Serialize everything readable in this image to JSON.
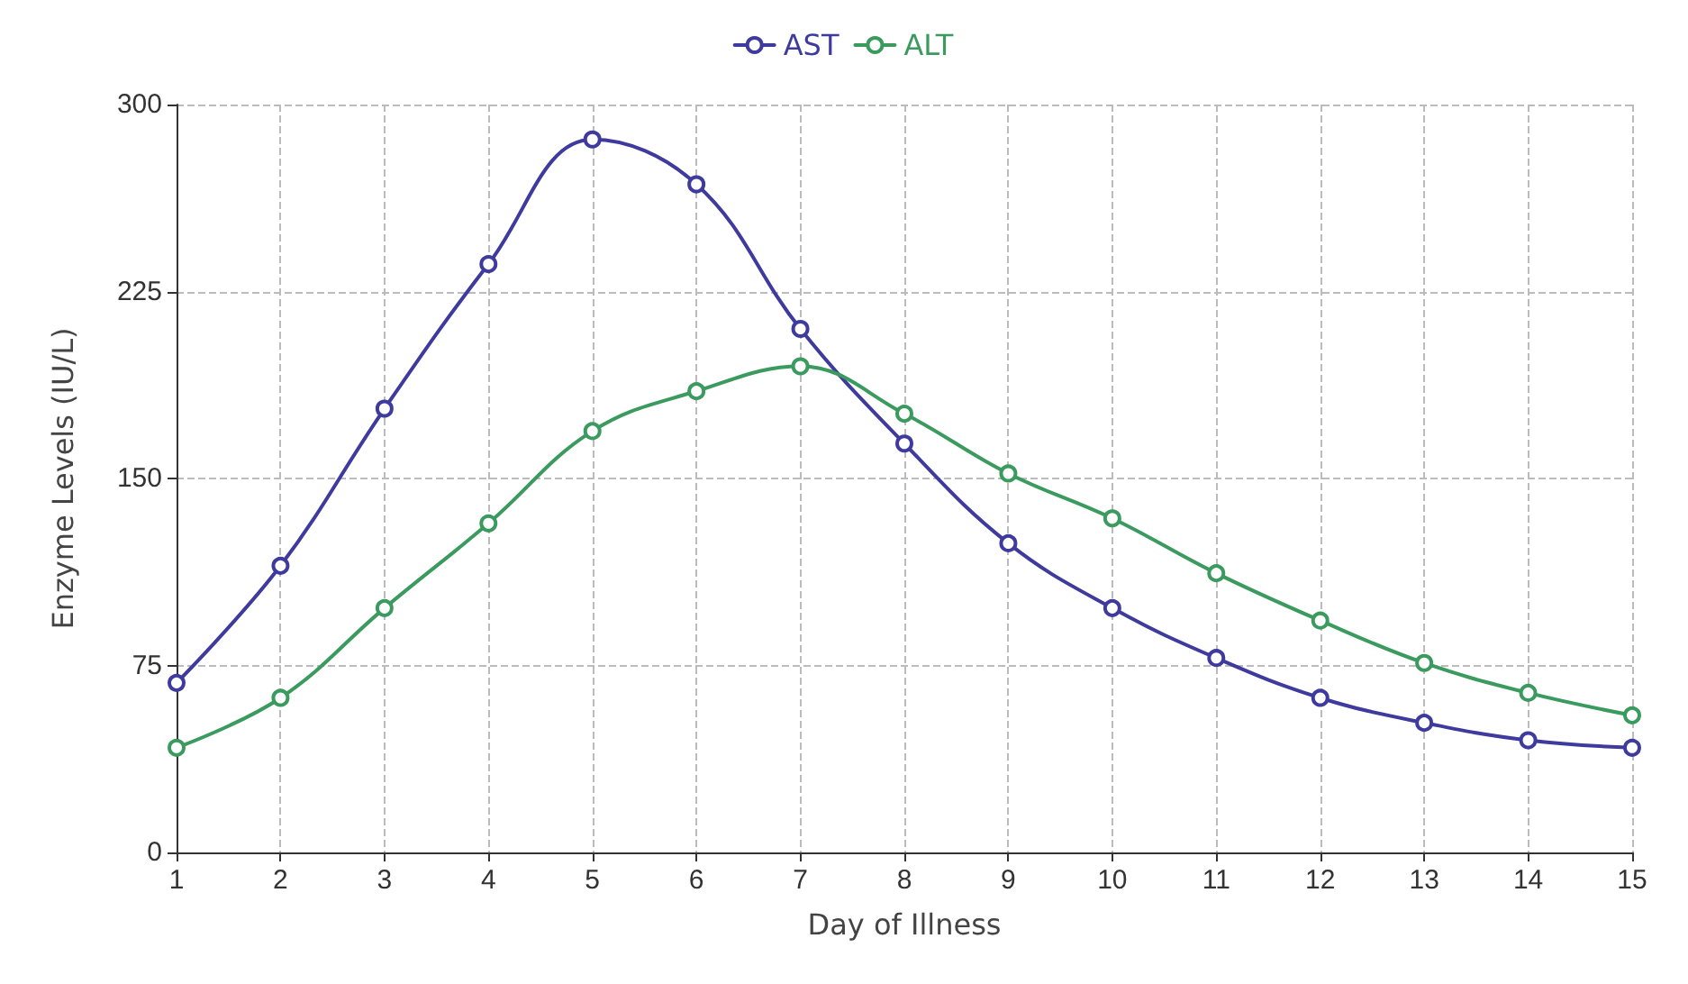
{
  "chart_data": {
    "type": "line",
    "xlabel": "Day of Illness",
    "ylabel": "Enzyme Levels (IU/L)",
    "x": [
      1,
      2,
      3,
      4,
      5,
      6,
      7,
      8,
      9,
      10,
      11,
      12,
      13,
      14,
      15
    ],
    "series": [
      {
        "name": "AST",
        "color": "#3f3b9e",
        "values": [
          68,
          115,
          178,
          236,
          286,
          268,
          210,
          164,
          124,
          98,
          78,
          62,
          52,
          45,
          42
        ]
      },
      {
        "name": "ALT",
        "color": "#3b9a5e",
        "values": [
          42,
          62,
          98,
          132,
          169,
          185,
          195,
          176,
          152,
          134,
          112,
          93,
          76,
          64,
          55
        ]
      }
    ],
    "xlim": [
      1,
      15
    ],
    "xticks": [
      1,
      2,
      3,
      4,
      5,
      6,
      7,
      8,
      9,
      10,
      11,
      12,
      13,
      14,
      15
    ],
    "ylim": [
      0,
      300
    ],
    "yticks": [
      0,
      75,
      150,
      225,
      300
    ],
    "grid": true,
    "legend": "top",
    "marker": "circle",
    "line_style": "solid"
  }
}
